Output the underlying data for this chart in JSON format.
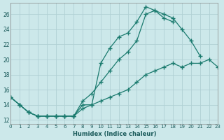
{
  "xlabel": "Humidex (Indice chaleur)",
  "bg_color": "#cce8ea",
  "grid_color": "#b0d0d4",
  "line_color": "#1a7a6e",
  "xlim": [
    0,
    23
  ],
  "ylim": [
    11.5,
    27.5
  ],
  "yticks": [
    12,
    14,
    16,
    18,
    20,
    22,
    24,
    26
  ],
  "xticks": [
    0,
    1,
    2,
    3,
    4,
    5,
    6,
    7,
    8,
    9,
    10,
    11,
    12,
    13,
    14,
    15,
    16,
    17,
    18,
    19,
    20,
    21,
    22,
    23
  ],
  "line1_x": [
    0,
    1,
    2,
    3,
    4,
    5,
    6,
    7,
    8,
    9,
    10,
    11,
    12,
    13,
    14,
    15,
    16,
    17,
    18,
    19,
    20,
    21
  ],
  "line1_y": [
    15,
    14,
    13,
    12.5,
    12.5,
    12.5,
    12.5,
    12.5,
    14,
    14,
    19.5,
    21.5,
    23,
    23.5,
    25,
    27,
    26.5,
    26,
    25.5,
    24,
    22.5,
    20.5
  ],
  "line2_x": [
    0,
    1,
    2,
    3,
    4,
    5,
    6,
    7,
    8,
    9,
    10,
    11,
    12,
    13,
    14,
    15,
    16,
    17,
    18
  ],
  "line2_y": [
    15,
    14,
    13,
    12.5,
    12.5,
    12.5,
    12.5,
    12.5,
    14.5,
    15.5,
    17,
    18.5,
    20,
    21,
    22.5,
    26,
    26.5,
    25.5,
    25
  ],
  "line3_x": [
    0,
    1,
    2,
    3,
    4,
    5,
    6,
    7,
    8,
    9,
    10,
    11,
    12,
    13,
    14,
    15,
    16,
    17,
    18,
    19,
    20,
    21,
    22,
    23
  ],
  "line3_y": [
    15,
    14,
    13,
    12.5,
    12.5,
    12.5,
    12.5,
    12.5,
    13.5,
    14,
    14.5,
    15,
    15.5,
    16,
    17,
    18,
    18.5,
    19,
    19.5,
    19,
    19.5,
    19.5,
    20,
    19
  ]
}
